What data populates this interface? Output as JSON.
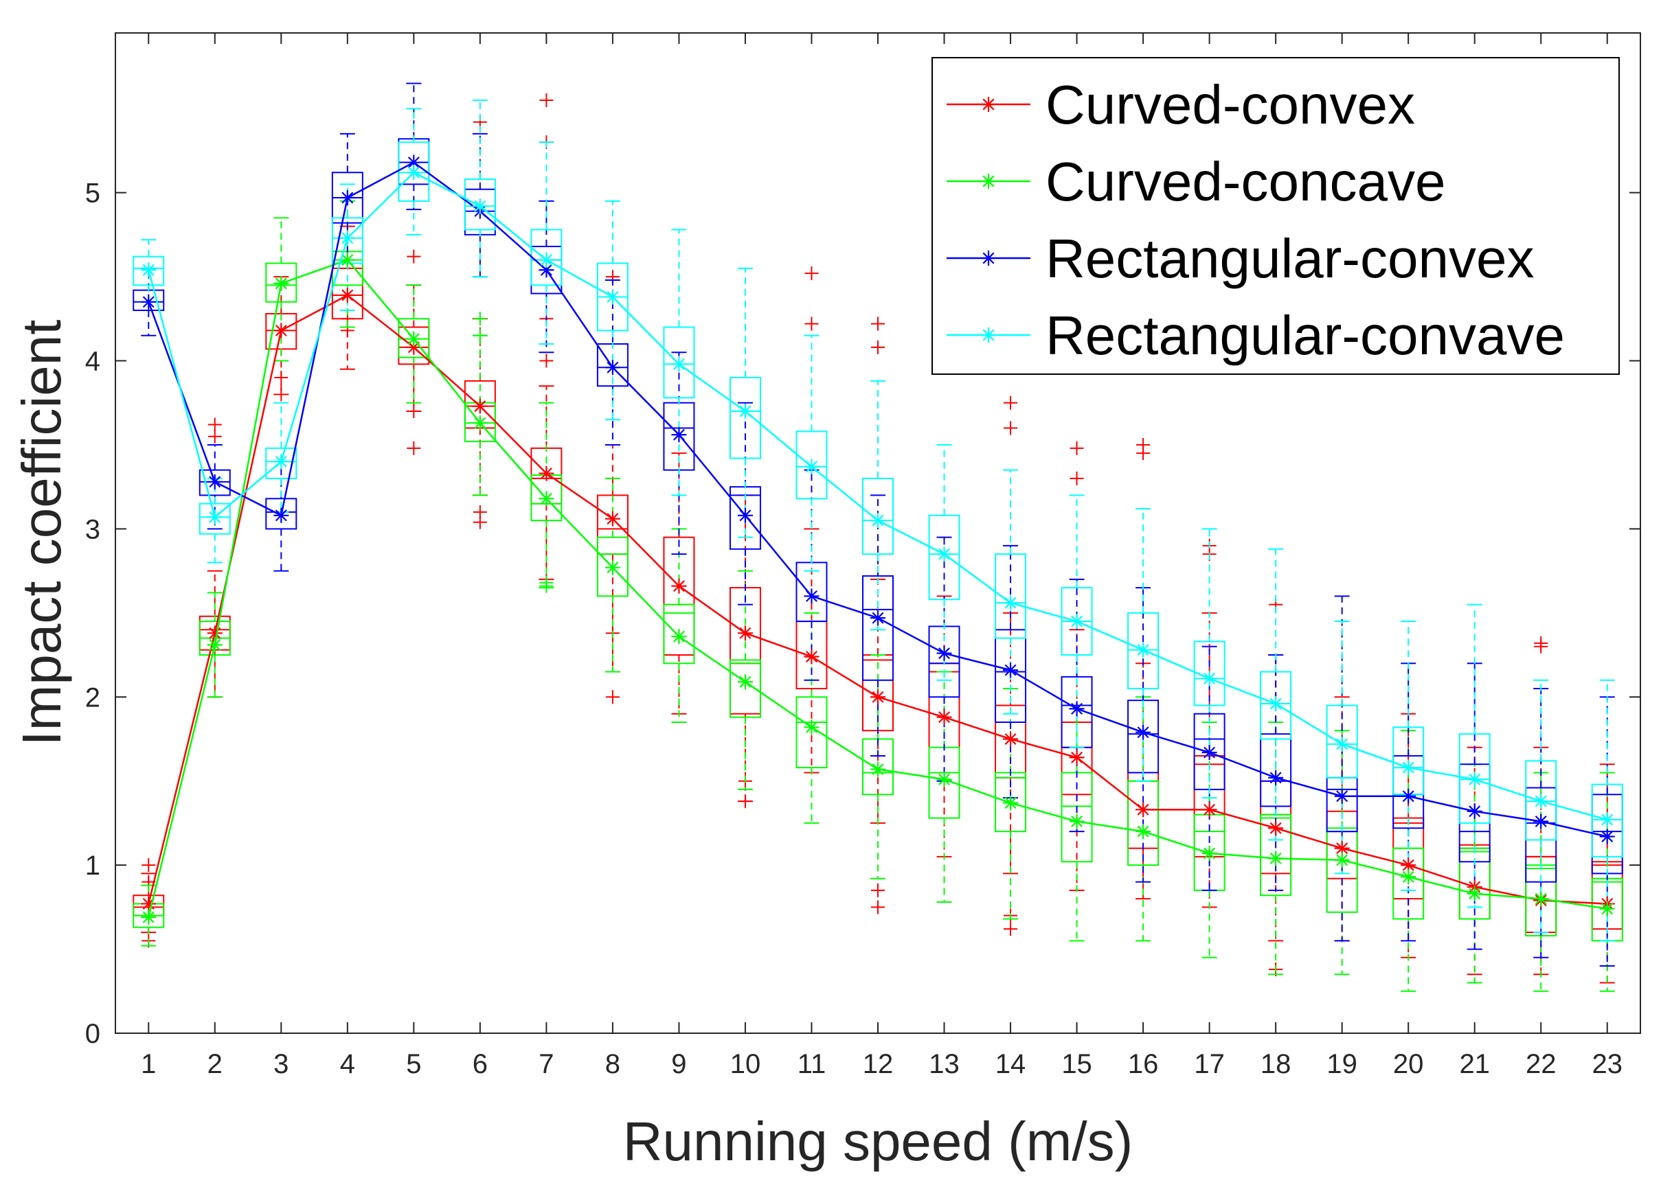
{
  "chart_data": {
    "type": "box+line",
    "title": "",
    "xlabel": "Running speed (m/s)",
    "ylabel": "Impact coefficient",
    "xlim": [
      0.5,
      23.5
    ],
    "ylim": [
      0,
      5.95
    ],
    "x": [
      1,
      2,
      3,
      4,
      5,
      6,
      7,
      8,
      9,
      10,
      11,
      12,
      13,
      14,
      15,
      16,
      17,
      18,
      19,
      20,
      21,
      22,
      23
    ],
    "x_tick_labels": [
      "1",
      "2",
      "3",
      "4",
      "5",
      "6",
      "7",
      "8",
      "9",
      "10",
      "11",
      "12",
      "13",
      "14",
      "15",
      "16",
      "17",
      "18",
      "19",
      "20",
      "21",
      "22",
      "23"
    ],
    "y_ticks": [
      0,
      1,
      2,
      3,
      4,
      5
    ],
    "y_tick_labels": [
      "0",
      "1",
      "2",
      "3",
      "4",
      "5"
    ],
    "grid": false,
    "legend_position": "top-right",
    "series": [
      {
        "name": "Curved-convex",
        "color": "#ff0000",
        "values": [
          0.77,
          2.38,
          4.18,
          4.39,
          4.08,
          3.73,
          3.33,
          3.06,
          2.66,
          2.38,
          2.24,
          2.0,
          1.88,
          1.75,
          1.64,
          1.33,
          1.33,
          1.22,
          1.1,
          1.0,
          0.87,
          0.79,
          0.77
        ],
        "box_q1": [
          0.7,
          2.28,
          4.07,
          4.25,
          3.98,
          3.6,
          3.15,
          2.85,
          2.25,
          1.9,
          2.05,
          1.8,
          1.55,
          1.52,
          1.42,
          1.1,
          1.05,
          0.95,
          0.92,
          0.8,
          0.68,
          0.6,
          0.62
        ],
        "box_median": [
          0.75,
          2.4,
          4.18,
          4.39,
          4.08,
          3.73,
          3.3,
          3.0,
          2.55,
          2.2,
          2.45,
          2.22,
          2.15,
          1.95,
          1.7,
          1.55,
          1.6,
          1.3,
          1.2,
          1.25,
          1.1,
          1.05,
          1.0
        ],
        "box_q3": [
          0.82,
          2.48,
          4.28,
          4.55,
          4.2,
          3.88,
          3.48,
          3.2,
          2.95,
          2.65,
          2.45,
          2.25,
          2.2,
          1.95,
          1.85,
          1.55,
          1.65,
          1.5,
          1.32,
          1.28,
          1.12,
          1.05,
          1.02
        ],
        "whisker_low": [
          0.6,
          2.0,
          3.8,
          3.95,
          3.7,
          3.2,
          2.7,
          2.15,
          1.9,
          1.38,
          1.55,
          1.25,
          1.05,
          0.95,
          0.85,
          0.8,
          0.75,
          0.55,
          0.55,
          0.45,
          0.35,
          0.35,
          0.3
        ],
        "whisker_high": [
          0.95,
          2.75,
          4.5,
          4.8,
          4.45,
          4.25,
          3.85,
          3.5,
          3.45,
          3.2,
          3.0,
          2.7,
          2.6,
          2.5,
          2.4,
          2.2,
          2.5,
          2.25,
          2.0,
          1.9,
          1.7,
          1.7,
          1.6
        ],
        "outliers": [
          [
            1,
            1.0
          ],
          [
            1,
            0.9
          ],
          [
            1,
            0.55
          ],
          [
            2,
            3.55
          ],
          [
            2,
            3.62
          ],
          [
            3,
            3.8
          ],
          [
            3,
            3.9
          ],
          [
            4,
            4.25
          ],
          [
            4,
            4.18
          ],
          [
            5,
            3.48
          ],
          [
            5,
            3.7
          ],
          [
            5,
            4.62
          ],
          [
            6,
            3.04
          ],
          [
            6,
            3.1
          ],
          [
            6,
            5.42
          ],
          [
            7,
            5.3
          ],
          [
            7,
            5.55
          ],
          [
            7,
            4.0
          ],
          [
            7,
            4.25
          ],
          [
            8,
            4.5
          ],
          [
            8,
            2.0
          ],
          [
            8,
            2.38
          ],
          [
            10,
            1.38
          ],
          [
            10,
            1.5
          ],
          [
            11,
            4.52
          ],
          [
            11,
            4.22
          ],
          [
            12,
            4.22
          ],
          [
            12,
            4.08
          ],
          [
            12,
            0.85
          ],
          [
            12,
            0.75
          ],
          [
            14,
            3.75
          ],
          [
            14,
            3.6
          ],
          [
            14,
            0.62
          ],
          [
            14,
            0.7
          ],
          [
            15,
            3.48
          ],
          [
            15,
            3.3
          ],
          [
            16,
            3.5
          ],
          [
            16,
            3.45
          ],
          [
            17,
            2.9
          ],
          [
            17,
            2.85
          ],
          [
            18,
            2.55
          ],
          [
            18,
            0.38
          ],
          [
            22,
            2.32
          ],
          [
            22,
            2.3
          ]
        ]
      },
      {
        "name": "Curved-concave",
        "color": "#00ff00",
        "values": [
          0.69,
          2.31,
          4.46,
          4.6,
          4.13,
          3.63,
          3.18,
          2.77,
          2.36,
          2.09,
          1.82,
          1.57,
          1.51,
          1.37,
          1.26,
          1.2,
          1.07,
          1.04,
          1.03,
          0.93,
          0.83,
          0.8,
          0.74
        ],
        "box_q1": [
          0.63,
          2.25,
          4.35,
          4.45,
          4.02,
          3.52,
          3.05,
          2.6,
          2.2,
          1.88,
          1.58,
          1.42,
          1.28,
          1.2,
          1.02,
          1.0,
          0.85,
          0.82,
          0.72,
          0.68,
          0.68,
          0.58,
          0.55
        ],
        "box_median": [
          0.7,
          2.35,
          4.45,
          4.6,
          4.13,
          3.63,
          3.15,
          2.85,
          2.5,
          2.2,
          1.85,
          1.55,
          1.55,
          1.52,
          1.35,
          1.5,
          1.2,
          1.28,
          1.2,
          1.1,
          1.08,
          0.98,
          0.9
        ],
        "box_q3": [
          0.77,
          2.45,
          4.58,
          4.65,
          4.25,
          3.75,
          3.32,
          2.95,
          2.55,
          2.22,
          2.0,
          1.75,
          1.7,
          1.55,
          1.55,
          1.5,
          1.3,
          1.3,
          1.22,
          1.1,
          1.1,
          1.0,
          0.92
        ],
        "whisker_low": [
          0.52,
          2.0,
          4.0,
          4.2,
          3.75,
          3.2,
          2.65,
          2.15,
          1.85,
          1.45,
          1.25,
          0.92,
          0.78,
          0.68,
          0.55,
          0.55,
          0.45,
          0.35,
          0.35,
          0.25,
          0.3,
          0.25,
          0.25
        ],
        "whisker_high": [
          0.88,
          2.62,
          4.85,
          4.95,
          4.45,
          4.15,
          3.75,
          3.3,
          3.0,
          2.75,
          2.5,
          2.25,
          2.15,
          2.05,
          1.95,
          2.0,
          1.85,
          1.85,
          1.8,
          1.8,
          1.6,
          1.55,
          1.55
        ],
        "outliers": [
          [
            6,
            4.15
          ],
          [
            6,
            4.25
          ],
          [
            7,
            2.68
          ],
          [
            7,
            2.66
          ]
        ]
      },
      {
        "name": "Rectangular-convex",
        "color": "#0000ff",
        "values": [
          4.35,
          3.28,
          3.08,
          4.97,
          5.18,
          4.89,
          4.54,
          3.96,
          3.56,
          3.08,
          2.6,
          2.47,
          2.26,
          2.16,
          1.93,
          1.79,
          1.67,
          1.52,
          1.41,
          1.41,
          1.32,
          1.26,
          1.17
        ],
        "box_q1": [
          4.3,
          3.2,
          3.0,
          4.82,
          5.05,
          4.75,
          4.4,
          3.85,
          3.35,
          2.88,
          2.45,
          2.1,
          2.0,
          1.85,
          1.7,
          1.55,
          1.45,
          1.35,
          1.2,
          1.22,
          1.02,
          0.9,
          0.95
        ],
        "box_median": [
          4.35,
          3.28,
          3.1,
          4.97,
          5.18,
          4.89,
          4.6,
          3.96,
          3.6,
          3.2,
          2.45,
          2.52,
          2.2,
          2.15,
          1.95,
          1.78,
          1.75,
          1.5,
          1.45,
          1.42,
          1.2,
          1.25,
          1.2
        ],
        "box_q3": [
          4.42,
          3.35,
          3.18,
          5.12,
          5.32,
          5.02,
          4.68,
          4.1,
          3.75,
          3.25,
          2.8,
          2.72,
          2.42,
          2.4,
          2.12,
          1.98,
          1.9,
          1.78,
          1.52,
          1.65,
          1.6,
          1.46,
          1.42
        ],
        "whisker_low": [
          4.15,
          3.0,
          2.75,
          4.6,
          4.9,
          4.5,
          4.05,
          3.5,
          2.85,
          2.55,
          2.1,
          1.65,
          1.5,
          1.4,
          1.2,
          0.9,
          0.85,
          0.85,
          0.55,
          0.55,
          0.5,
          0.45,
          0.4
        ],
        "whisker_high": [
          4.55,
          3.5,
          3.4,
          5.35,
          5.65,
          5.35,
          4.95,
          4.48,
          4.05,
          3.75,
          3.35,
          3.2,
          2.95,
          2.9,
          2.7,
          2.65,
          2.3,
          2.25,
          2.6,
          2.2,
          2.2,
          2.05,
          2.0
        ],
        "outliers": []
      },
      {
        "name": "Rectangular-convave",
        "color": "#00ffff",
        "values": [
          4.54,
          3.07,
          3.4,
          4.73,
          5.12,
          4.92,
          4.6,
          4.38,
          3.98,
          3.7,
          3.37,
          3.05,
          2.85,
          2.56,
          2.45,
          2.28,
          2.11,
          1.96,
          1.72,
          1.58,
          1.51,
          1.38,
          1.27
        ],
        "box_q1": [
          4.45,
          2.97,
          3.3,
          4.58,
          4.95,
          4.78,
          4.45,
          4.18,
          3.78,
          3.42,
          3.18,
          2.85,
          2.58,
          2.35,
          2.25,
          2.05,
          1.95,
          1.75,
          1.52,
          1.42,
          1.25,
          1.15,
          1.05
        ],
        "box_median": [
          4.55,
          3.07,
          3.4,
          4.73,
          5.12,
          4.92,
          4.6,
          4.38,
          3.98,
          3.7,
          3.37,
          3.05,
          2.85,
          2.56,
          2.45,
          2.28,
          2.11,
          1.96,
          1.72,
          1.58,
          1.51,
          1.38,
          1.27
        ],
        "box_q3": [
          4.62,
          3.15,
          3.48,
          4.85,
          5.3,
          5.08,
          4.78,
          4.58,
          4.2,
          3.9,
          3.58,
          3.3,
          3.08,
          2.85,
          2.65,
          2.5,
          2.33,
          2.15,
          1.95,
          1.82,
          1.78,
          1.62,
          1.48
        ],
        "whisker_low": [
          4.35,
          2.8,
          3.1,
          4.3,
          4.75,
          4.5,
          4.1,
          3.65,
          3.2,
          2.95,
          2.75,
          2.4,
          2.1,
          1.9,
          1.7,
          1.5,
          1.4,
          1.15,
          0.95,
          0.85,
          0.75,
          0.6,
          0.55
        ],
        "whisker_high": [
          4.72,
          3.3,
          3.75,
          5.05,
          5.5,
          5.55,
          5.3,
          4.95,
          4.78,
          4.55,
          4.15,
          3.88,
          3.5,
          3.35,
          3.2,
          3.12,
          3.0,
          2.88,
          2.45,
          2.45,
          2.55,
          2.1,
          2.1
        ],
        "outliers": []
      }
    ]
  }
}
